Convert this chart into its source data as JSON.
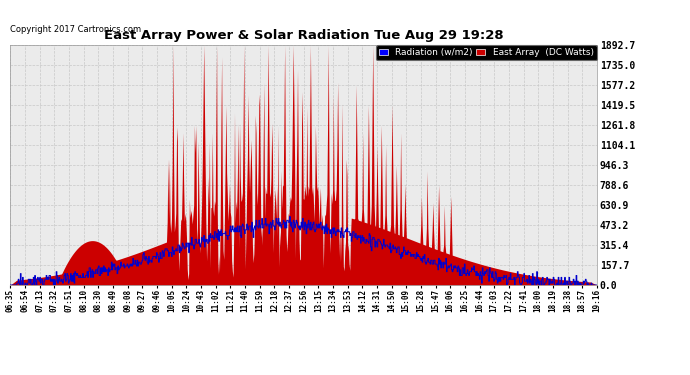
{
  "title": "East Array Power & Solar Radiation Tue Aug 29 19:28",
  "copyright": "Copyright 2017 Cartronics.com",
  "legend_labels": [
    "Radiation (w/m2)",
    "East Array  (DC Watts)"
  ],
  "legend_colors": [
    "#0000ff",
    "#cc0000"
  ],
  "yticks": [
    0.0,
    157.7,
    315.4,
    473.2,
    630.9,
    788.6,
    946.3,
    1104.1,
    1261.8,
    1419.5,
    1577.2,
    1735.0,
    1892.7
  ],
  "ymax": 1892.7,
  "ymin": 0.0,
  "background_color": "#ffffff",
  "plot_bg_color": "#ebebeb",
  "grid_color": "#c8c8c8",
  "xtick_labels": [
    "06:35",
    "06:54",
    "07:13",
    "07:32",
    "07:51",
    "08:10",
    "08:30",
    "08:49",
    "09:08",
    "09:27",
    "09:46",
    "10:05",
    "10:24",
    "10:43",
    "11:02",
    "11:21",
    "11:40",
    "11:59",
    "12:18",
    "12:37",
    "12:56",
    "13:15",
    "13:34",
    "13:53",
    "14:12",
    "14:31",
    "14:50",
    "15:09",
    "15:28",
    "15:47",
    "16:06",
    "16:25",
    "16:44",
    "17:03",
    "17:22",
    "17:41",
    "18:00",
    "18:19",
    "18:38",
    "18:57",
    "19:16"
  ],
  "n_points": 820,
  "fill_color_red": "#cc0000",
  "line_color_blue": "#0000cc"
}
